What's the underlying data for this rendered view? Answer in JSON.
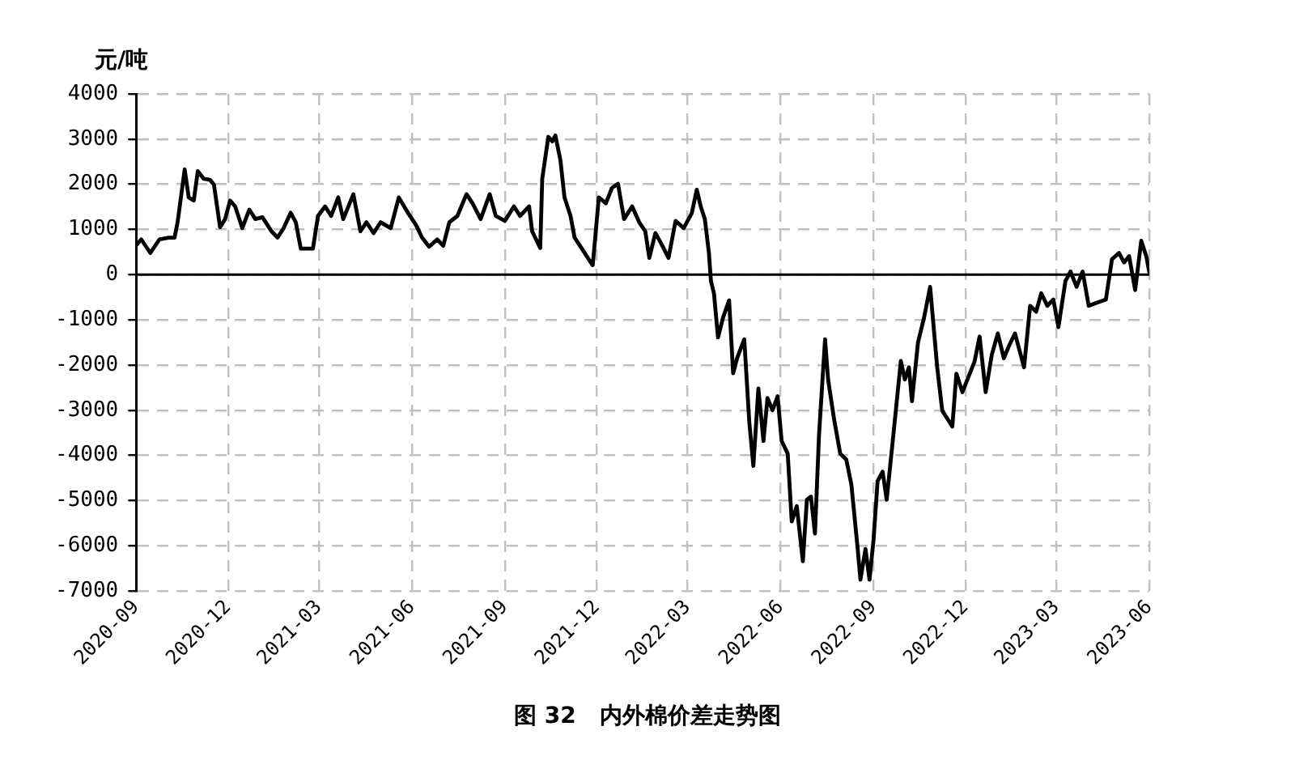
{
  "chart_data": {
    "type": "line",
    "title": "图 32   内外棉价差走势图",
    "ylabel": "元/吨",
    "x": [
      "2020-09-01",
      "2020-09-06",
      "2020-09-15",
      "2020-09-24",
      "2020-10-03",
      "2020-10-09",
      "2020-10-12",
      "2020-10-19",
      "2020-10-23",
      "2020-10-28",
      "2020-11-01",
      "2020-11-07",
      "2020-11-13",
      "2020-11-17",
      "2020-11-23",
      "2020-11-28",
      "2020-12-03",
      "2020-12-08",
      "2020-12-15",
      "2020-12-22",
      "2020-12-28",
      "2021-01-04",
      "2021-01-13",
      "2021-01-19",
      "2021-01-25",
      "2021-02-01",
      "2021-02-06",
      "2021-02-11",
      "2021-02-23",
      "2021-02-28",
      "2021-03-07",
      "2021-03-13",
      "2021-03-20",
      "2021-03-25",
      "2021-04-04",
      "2021-04-11",
      "2021-04-17",
      "2021-04-24",
      "2021-05-01",
      "2021-05-11",
      "2021-05-19",
      "2021-05-28",
      "2021-06-05",
      "2021-06-11",
      "2021-06-18",
      "2021-06-26",
      "2021-07-02",
      "2021-07-08",
      "2021-07-16",
      "2021-07-25",
      "2021-07-31",
      "2021-08-08",
      "2021-08-17",
      "2021-08-23",
      "2021-09-01",
      "2021-09-10",
      "2021-09-16",
      "2021-09-25",
      "2021-09-28",
      "2021-10-06",
      "2021-10-08",
      "2021-10-14",
      "2021-10-18",
      "2021-10-21",
      "2021-10-26",
      "2021-10-30",
      "2021-11-05",
      "2021-11-09",
      "2021-11-17",
      "2021-11-23",
      "2021-11-27",
      "2021-12-03",
      "2021-12-10",
      "2021-12-16",
      "2021-12-22",
      "2021-12-28",
      "2022-01-05",
      "2022-01-12",
      "2022-01-18",
      "2022-01-22",
      "2022-01-28",
      "2022-02-03",
      "2022-02-10",
      "2022-02-17",
      "2022-02-25",
      "2022-03-05",
      "2022-03-10",
      "2022-03-14",
      "2022-03-18",
      "2022-03-22",
      "2022-03-24",
      "2022-03-27",
      "2022-03-31",
      "2022-04-05",
      "2022-04-11",
      "2022-04-15",
      "2022-04-19",
      "2022-04-26",
      "2022-05-01",
      "2022-05-05",
      "2022-05-10",
      "2022-05-15",
      "2022-05-19",
      "2022-05-24",
      "2022-05-29",
      "2022-06-02",
      "2022-06-08",
      "2022-06-12",
      "2022-06-17",
      "2022-06-23",
      "2022-06-27",
      "2022-07-01",
      "2022-07-05",
      "2022-07-09",
      "2022-07-15",
      "2022-07-18",
      "2022-07-24",
      "2022-07-30",
      "2022-08-05",
      "2022-08-10",
      "2022-08-16",
      "2022-08-19",
      "2022-08-24",
      "2022-08-28",
      "2022-09-01",
      "2022-09-05",
      "2022-09-10",
      "2022-09-14",
      "2022-09-20",
      "2022-09-28",
      "2022-10-02",
      "2022-10-06",
      "2022-10-09",
      "2022-10-15",
      "2022-10-21",
      "2022-10-27",
      "2022-11-03",
      "2022-11-08",
      "2022-11-14",
      "2022-11-18",
      "2022-11-22",
      "2022-11-28",
      "2022-12-04",
      "2022-12-10",
      "2022-12-15",
      "2022-12-21",
      "2022-12-27",
      "2023-01-02",
      "2023-01-08",
      "2023-01-13",
      "2023-01-19",
      "2023-01-28",
      "2023-02-03",
      "2023-02-09",
      "2023-02-14",
      "2023-02-20",
      "2023-02-26",
      "2023-03-03",
      "2023-03-10",
      "2023-03-15",
      "2023-03-21",
      "2023-03-27",
      "2023-04-02",
      "2023-04-10",
      "2023-04-19",
      "2023-04-25",
      "2023-05-02",
      "2023-05-07",
      "2023-05-12",
      "2023-05-18",
      "2023-05-24",
      "2023-05-29",
      "2023-06-01"
    ],
    "series": [
      {
        "color": "#000000",
        "values": [
          650,
          780,
          480,
          780,
          820,
          820,
          1160,
          2330,
          1710,
          1640,
          2290,
          2120,
          2100,
          1990,
          1050,
          1230,
          1640,
          1510,
          1030,
          1440,
          1230,
          1270,
          960,
          820,
          1030,
          1370,
          1160,
          575,
          575,
          1300,
          1510,
          1300,
          1710,
          1230,
          1780,
          960,
          1160,
          920,
          1160,
          1030,
          1710,
          1370,
          1100,
          820,
          620,
          780,
          640,
          1160,
          1300,
          1780,
          1580,
          1230,
          1780,
          1300,
          1190,
          1510,
          1300,
          1510,
          960,
          590,
          2120,
          3050,
          2950,
          3080,
          2530,
          1710,
          1300,
          820,
          550,
          340,
          210,
          1710,
          1580,
          1920,
          2010,
          1230,
          1510,
          1160,
          960,
          370,
          920,
          680,
          370,
          1190,
          1030,
          1360,
          1880,
          1500,
          1230,
          480,
          -140,
          -410,
          -1390,
          -950,
          -570,
          -2180,
          -1840,
          -1430,
          -3270,
          -4230,
          -2520,
          -3680,
          -2730,
          -3000,
          -2690,
          -3680,
          -3960,
          -5460,
          -5120,
          -6340,
          -4980,
          -4910,
          -5730,
          -3550,
          -1430,
          -2320,
          -3210,
          -3960,
          -4090,
          -4640,
          -6000,
          -6750,
          -6070,
          -6750,
          -5860,
          -4570,
          -4360,
          -4980,
          -3680,
          -1910,
          -2320,
          -2050,
          -2800,
          -1500,
          -950,
          -270,
          -2050,
          -3010,
          -3220,
          -3360,
          -2190,
          -2600,
          -2260,
          -1920,
          -1370,
          -2600,
          -1780,
          -1300,
          -1850,
          -1580,
          -1300,
          -2050,
          -690,
          -820,
          -410,
          -690,
          -550,
          -1160,
          -140,
          70,
          -270,
          70,
          -690,
          -620,
          -550,
          340,
          480,
          270,
          410,
          -340,
          750,
          410,
          50
        ]
      }
    ],
    "xlim": [
      "2020-09-01",
      "2023-06-01"
    ],
    "xticks": [
      {
        "value": "2020-09-01",
        "label": "2020-09"
      },
      {
        "value": "2020-12-01",
        "label": "2020-12"
      },
      {
        "value": "2021-03-01",
        "label": "2021-03"
      },
      {
        "value": "2021-06-01",
        "label": "2021-06"
      },
      {
        "value": "2021-09-01",
        "label": "2021-09"
      },
      {
        "value": "2021-12-01",
        "label": "2021-12"
      },
      {
        "value": "2022-03-01",
        "label": "2022-03"
      },
      {
        "value": "2022-06-01",
        "label": "2022-06"
      },
      {
        "value": "2022-09-01",
        "label": "2022-09"
      },
      {
        "value": "2022-12-01",
        "label": "2022-12"
      },
      {
        "value": "2023-03-01",
        "label": "2023-03"
      },
      {
        "value": "2023-06-01",
        "label": "2023-06"
      }
    ],
    "ylim": [
      -7000,
      4000
    ],
    "yticks": [
      -7000,
      -6000,
      -5000,
      -4000,
      -3000,
      -2000,
      -1000,
      0,
      1000,
      2000,
      3000,
      4000
    ],
    "grid": true,
    "line_style": "solid",
    "ref_lines": [
      {
        "axis": "y",
        "value": 0,
        "color": "#000000"
      }
    ]
  }
}
